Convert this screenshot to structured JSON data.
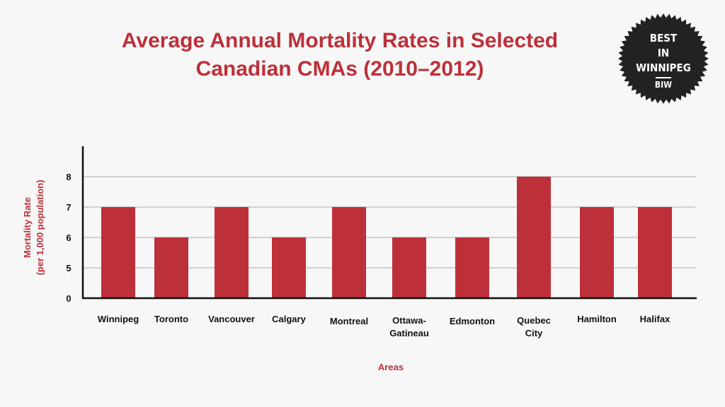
{
  "chart_data": {
    "type": "bar",
    "title_lines": [
      "Average Annual Mortality Rates in Selected",
      "Canadian CMAs (2010–2012)"
    ],
    "categories": [
      [
        "Winnipeg"
      ],
      [
        "Toronto"
      ],
      [
        "Vancouver"
      ],
      [
        "Calgary"
      ],
      [
        "Montreal"
      ],
      [
        "Ottawa-",
        "Gatineau"
      ],
      [
        "Edmonton"
      ],
      [
        "Quebec",
        "City"
      ],
      [
        "Hamilton"
      ],
      [
        "Halifax"
      ]
    ],
    "values": [
      7.0,
      6.0,
      7.0,
      6.0,
      7.0,
      6.0,
      6.0,
      8.0,
      7.0,
      7.0
    ],
    "xlabel": "Areas",
    "ylabel_lines": [
      "Mortality Rate",
      "(per 1,000 population)"
    ],
    "yticks": [
      0,
      5,
      6,
      7,
      8
    ],
    "gridlines": [
      5,
      6,
      7,
      8
    ],
    "ylim_visual": "0 at baseline; 5–8 evenly spaced above",
    "bar_color": "#bd3039",
    "grid": true
  },
  "badge": {
    "lines": [
      "BEST",
      "IN",
      "WINNIPEG"
    ],
    "sub": "BIW",
    "color": "#222222"
  }
}
